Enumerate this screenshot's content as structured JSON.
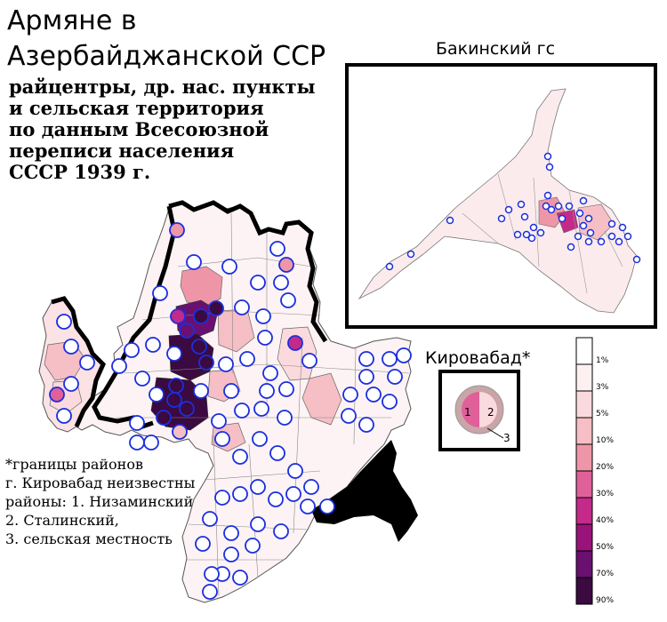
{
  "title": {
    "line1": "Армяне в",
    "line2": "Азербайджанской ССР"
  },
  "subtitle": {
    "line1": "райцентры, др. нас. пункты",
    "line2": "и сельская территория",
    "line3": "по данным Всесоюзной",
    "line4": "переписи населения",
    "line5": "СССР 1939 г."
  },
  "inset": {
    "title": "Бакинский гс"
  },
  "kirovabad": {
    "title": "Кировабад*",
    "part1": "1",
    "part2": "2",
    "part3": "3"
  },
  "note": {
    "line1": "*границы районов",
    "line2": "г. Кировабад неизвестны",
    "line3": "районы: 1. Низаминский,",
    "line4": "2. Сталинский,",
    "line5": "3. сельская местность"
  },
  "legend": {
    "labels": [
      "1%",
      "3%",
      "5%",
      "10%",
      "20%",
      "30%",
      "40%",
      "50%",
      "70%",
      "90%"
    ],
    "colors": [
      "#ffffff",
      "#fdf0f1",
      "#fbdadd",
      "#f6bec5",
      "#ee96a8",
      "#e0609a",
      "#c42a8a",
      "#9a137a",
      "#6a1070",
      "#3a0a40"
    ]
  },
  "colors": {
    "circle_stroke": "#1a2ee0",
    "border_stroke": "#000000"
  }
}
